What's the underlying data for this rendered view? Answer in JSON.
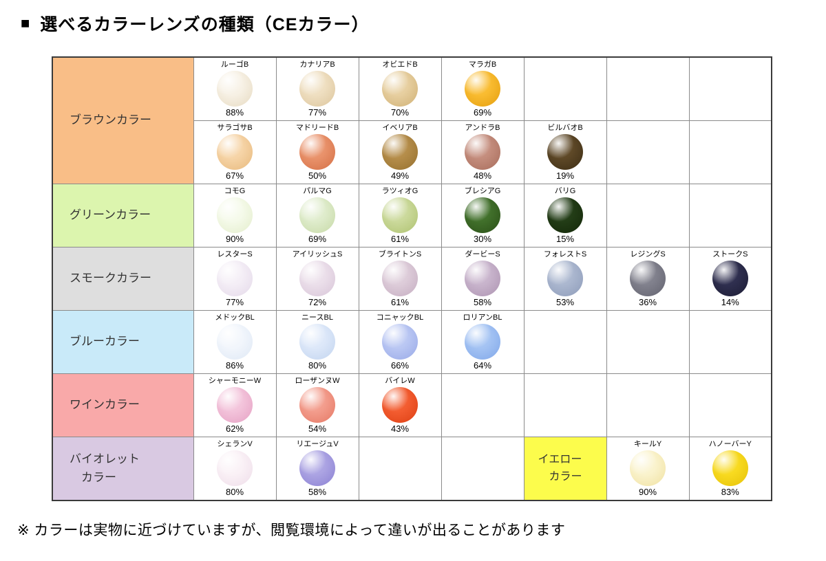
{
  "page": {
    "bullet": "■",
    "title": "選べるカラーレンズの種類（CEカラー）",
    "footer": "※ カラーは実物に近づけていますが、閲覧環境によって違いが出ることがあります"
  },
  "table": {
    "bands": [
      {
        "id": "brown",
        "label": "ブラウンカラー",
        "bg": "#F9BE87",
        "lines": [
          {
            "cells": [
              {
                "type": "lens",
                "name": "ルーゴB",
                "pct": "88%",
                "color": "#F7F1E5",
                "edge": "#E6DAC1"
              },
              {
                "type": "lens",
                "name": "カナリアB",
                "pct": "77%",
                "color": "#EFDFC1",
                "edge": "#DCC59C"
              },
              {
                "type": "lens",
                "name": "オビエドB",
                "pct": "70%",
                "color": "#E7CFA0",
                "edge": "#CFB074"
              },
              {
                "type": "lens",
                "name": "マラガB",
                "pct": "69%",
                "color": "#F9BC31",
                "edge": "#E49E0E"
              },
              null,
              null,
              null
            ]
          },
          {
            "cells": [
              {
                "type": "lens",
                "name": "サラゴサB",
                "pct": "67%",
                "color": "#F6D4A7",
                "edge": "#E7B97C"
              },
              {
                "type": "lens",
                "name": "マドリードB",
                "pct": "50%",
                "color": "#E9926B",
                "edge": "#D46F45"
              },
              {
                "type": "lens",
                "name": "イベリアB",
                "pct": "49%",
                "color": "#B58D4A",
                "edge": "#95702E"
              },
              {
                "type": "lens",
                "name": "アンドラB",
                "pct": "48%",
                "color": "#C48D7D",
                "edge": "#A76C5B"
              },
              {
                "type": "lens",
                "name": "ビルバオB",
                "pct": "19%",
                "color": "#5E4827",
                "edge": "#3C2D14"
              },
              null,
              null
            ]
          }
        ]
      },
      {
        "id": "green",
        "label": "グリーンカラー",
        "bg": "#DCF5AE",
        "lines": [
          {
            "cells": [
              {
                "type": "lens",
                "name": "コモG",
                "pct": "90%",
                "color": "#F5FAEA",
                "edge": "#E3EDCB"
              },
              {
                "type": "lens",
                "name": "パルマG",
                "pct": "69%",
                "color": "#DFECCC",
                "edge": "#C6D9A6"
              },
              {
                "type": "lens",
                "name": "ラツィオG",
                "pct": "61%",
                "color": "#CBD99B",
                "edge": "#AEC270"
              },
              {
                "type": "lens",
                "name": "ブレシアG",
                "pct": "30%",
                "color": "#41702B",
                "edge": "#2A4F17"
              },
              {
                "type": "lens",
                "name": "バリG",
                "pct": "15%",
                "color": "#233D17",
                "edge": "#132708"
              },
              null,
              null
            ]
          }
        ]
      },
      {
        "id": "smoke",
        "label": "スモークカラー",
        "bg": "#DEDEDE",
        "lines": [
          {
            "cells": [
              {
                "type": "lens",
                "name": "レスターS",
                "pct": "77%",
                "color": "#F4EEF6",
                "edge": "#E4D9E9"
              },
              {
                "type": "lens",
                "name": "アイリッシュS",
                "pct": "72%",
                "color": "#EBDFEA",
                "edge": "#D8C5D8"
              },
              {
                "type": "lens",
                "name": "ブライトンS",
                "pct": "61%",
                "color": "#DDCCD9",
                "edge": "#C5ADC1"
              },
              {
                "type": "lens",
                "name": "ダービーS",
                "pct": "58%",
                "color": "#C8B4CC",
                "edge": "#AD93B1"
              },
              {
                "type": "lens",
                "name": "フォレストS",
                "pct": "53%",
                "color": "#ABB7CF",
                "edge": "#8D9BB9"
              },
              {
                "type": "lens",
                "name": "レジングS",
                "pct": "36%",
                "color": "#81818D",
                "edge": "#63636F"
              },
              {
                "type": "lens",
                "name": "ストークS",
                "pct": "14%",
                "color": "#2F2F4F",
                "edge": "#1C1C34"
              }
            ]
          }
        ]
      },
      {
        "id": "blue",
        "label": "ブルーカラー",
        "bg": "#C9EAF9",
        "lines": [
          {
            "cells": [
              {
                "type": "lens",
                "name": "メドックBL",
                "pct": "86%",
                "color": "#F2F6FC",
                "edge": "#DEE8F5"
              },
              {
                "type": "lens",
                "name": "ニースBL",
                "pct": "80%",
                "color": "#DDE8F9",
                "edge": "#C2D4EF"
              },
              {
                "type": "lens",
                "name": "コニャックBL",
                "pct": "66%",
                "color": "#BAC7F3",
                "edge": "#98A9E7"
              },
              {
                "type": "lens",
                "name": "ロリアンBL",
                "pct": "64%",
                "color": "#A4C3F3",
                "edge": "#80A7E9"
              },
              null,
              null,
              null
            ]
          }
        ]
      },
      {
        "id": "wine",
        "label": "ワインカラー",
        "bg": "#F9A9A9",
        "lines": [
          {
            "cells": [
              {
                "type": "lens",
                "name": "シャーモニーW",
                "pct": "62%",
                "color": "#F3C4DB",
                "edge": "#E5A0C3"
              },
              {
                "type": "lens",
                "name": "ローザンヌW",
                "pct": "54%",
                "color": "#F39D8D",
                "edge": "#E57864"
              },
              {
                "type": "lens",
                "name": "バイレW",
                "pct": "43%",
                "color": "#F35D31",
                "edge": "#DD3F13"
              },
              null,
              null,
              null,
              null
            ]
          }
        ]
      },
      {
        "id": "violet",
        "label": "バイオレット\n　カラー",
        "bg": "#D9C9E2",
        "lines": [
          {
            "cells": [
              {
                "type": "lens",
                "name": "シェランV",
                "pct": "80%",
                "color": "#FAF1F6",
                "edge": "#EEDDE9"
              },
              {
                "type": "lens",
                "name": "リエージュV",
                "pct": "58%",
                "color": "#ACA4E3",
                "edge": "#8B81D3"
              },
              null,
              null,
              {
                "type": "label",
                "id": "yellow",
                "label": "イエロー\n　カラー",
                "bg": "#FCFC4C"
              },
              {
                "type": "lens",
                "name": "キールY",
                "pct": "90%",
                "color": "#FAF3CD",
                "edge": "#F0E1A1"
              },
              {
                "type": "lens",
                "name": "ハノーバーY",
                "pct": "83%",
                "color": "#F8DA20",
                "edge": "#E6C207"
              }
            ]
          }
        ]
      }
    ]
  }
}
